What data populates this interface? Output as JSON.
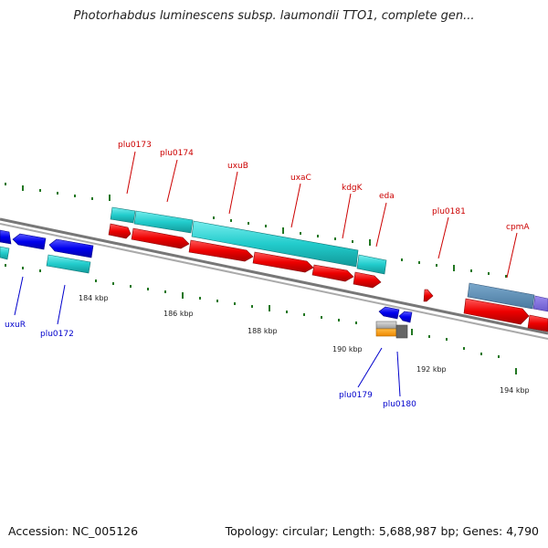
{
  "title": "Photorhabdus luminescens subsp. laumondii TTO1, complete gen...",
  "footer": {
    "accession": "Accession: NC_005126",
    "topology": "Topology: circular; Length: 5,688,987 bp; Genes: 4,790"
  },
  "colors": {
    "forward_label": "#cc0000",
    "reverse_label": "#0000cc",
    "cds_forward": "#ff0000",
    "cds_reverse": "#0000ee",
    "rna_cyan": "#22cccc",
    "backbone": "#888888",
    "tick": "#227722"
  },
  "scale_labels": [
    "184 kbp",
    "186 kbp",
    "188 kbp",
    "190 kbp",
    "192 kbp",
    "194 kbp"
  ],
  "gene_labels": {
    "top": [
      "plu0173",
      "plu0174",
      "uxuB",
      "uxaC",
      "kdgK",
      "eda",
      "plu0181",
      "cpmA"
    ],
    "bottom": [
      "uxuR",
      "plu0172",
      "plu0179",
      "plu0180"
    ]
  },
  "icons": [
    "forward-arrow-icon",
    "reverse-arrow-icon"
  ]
}
